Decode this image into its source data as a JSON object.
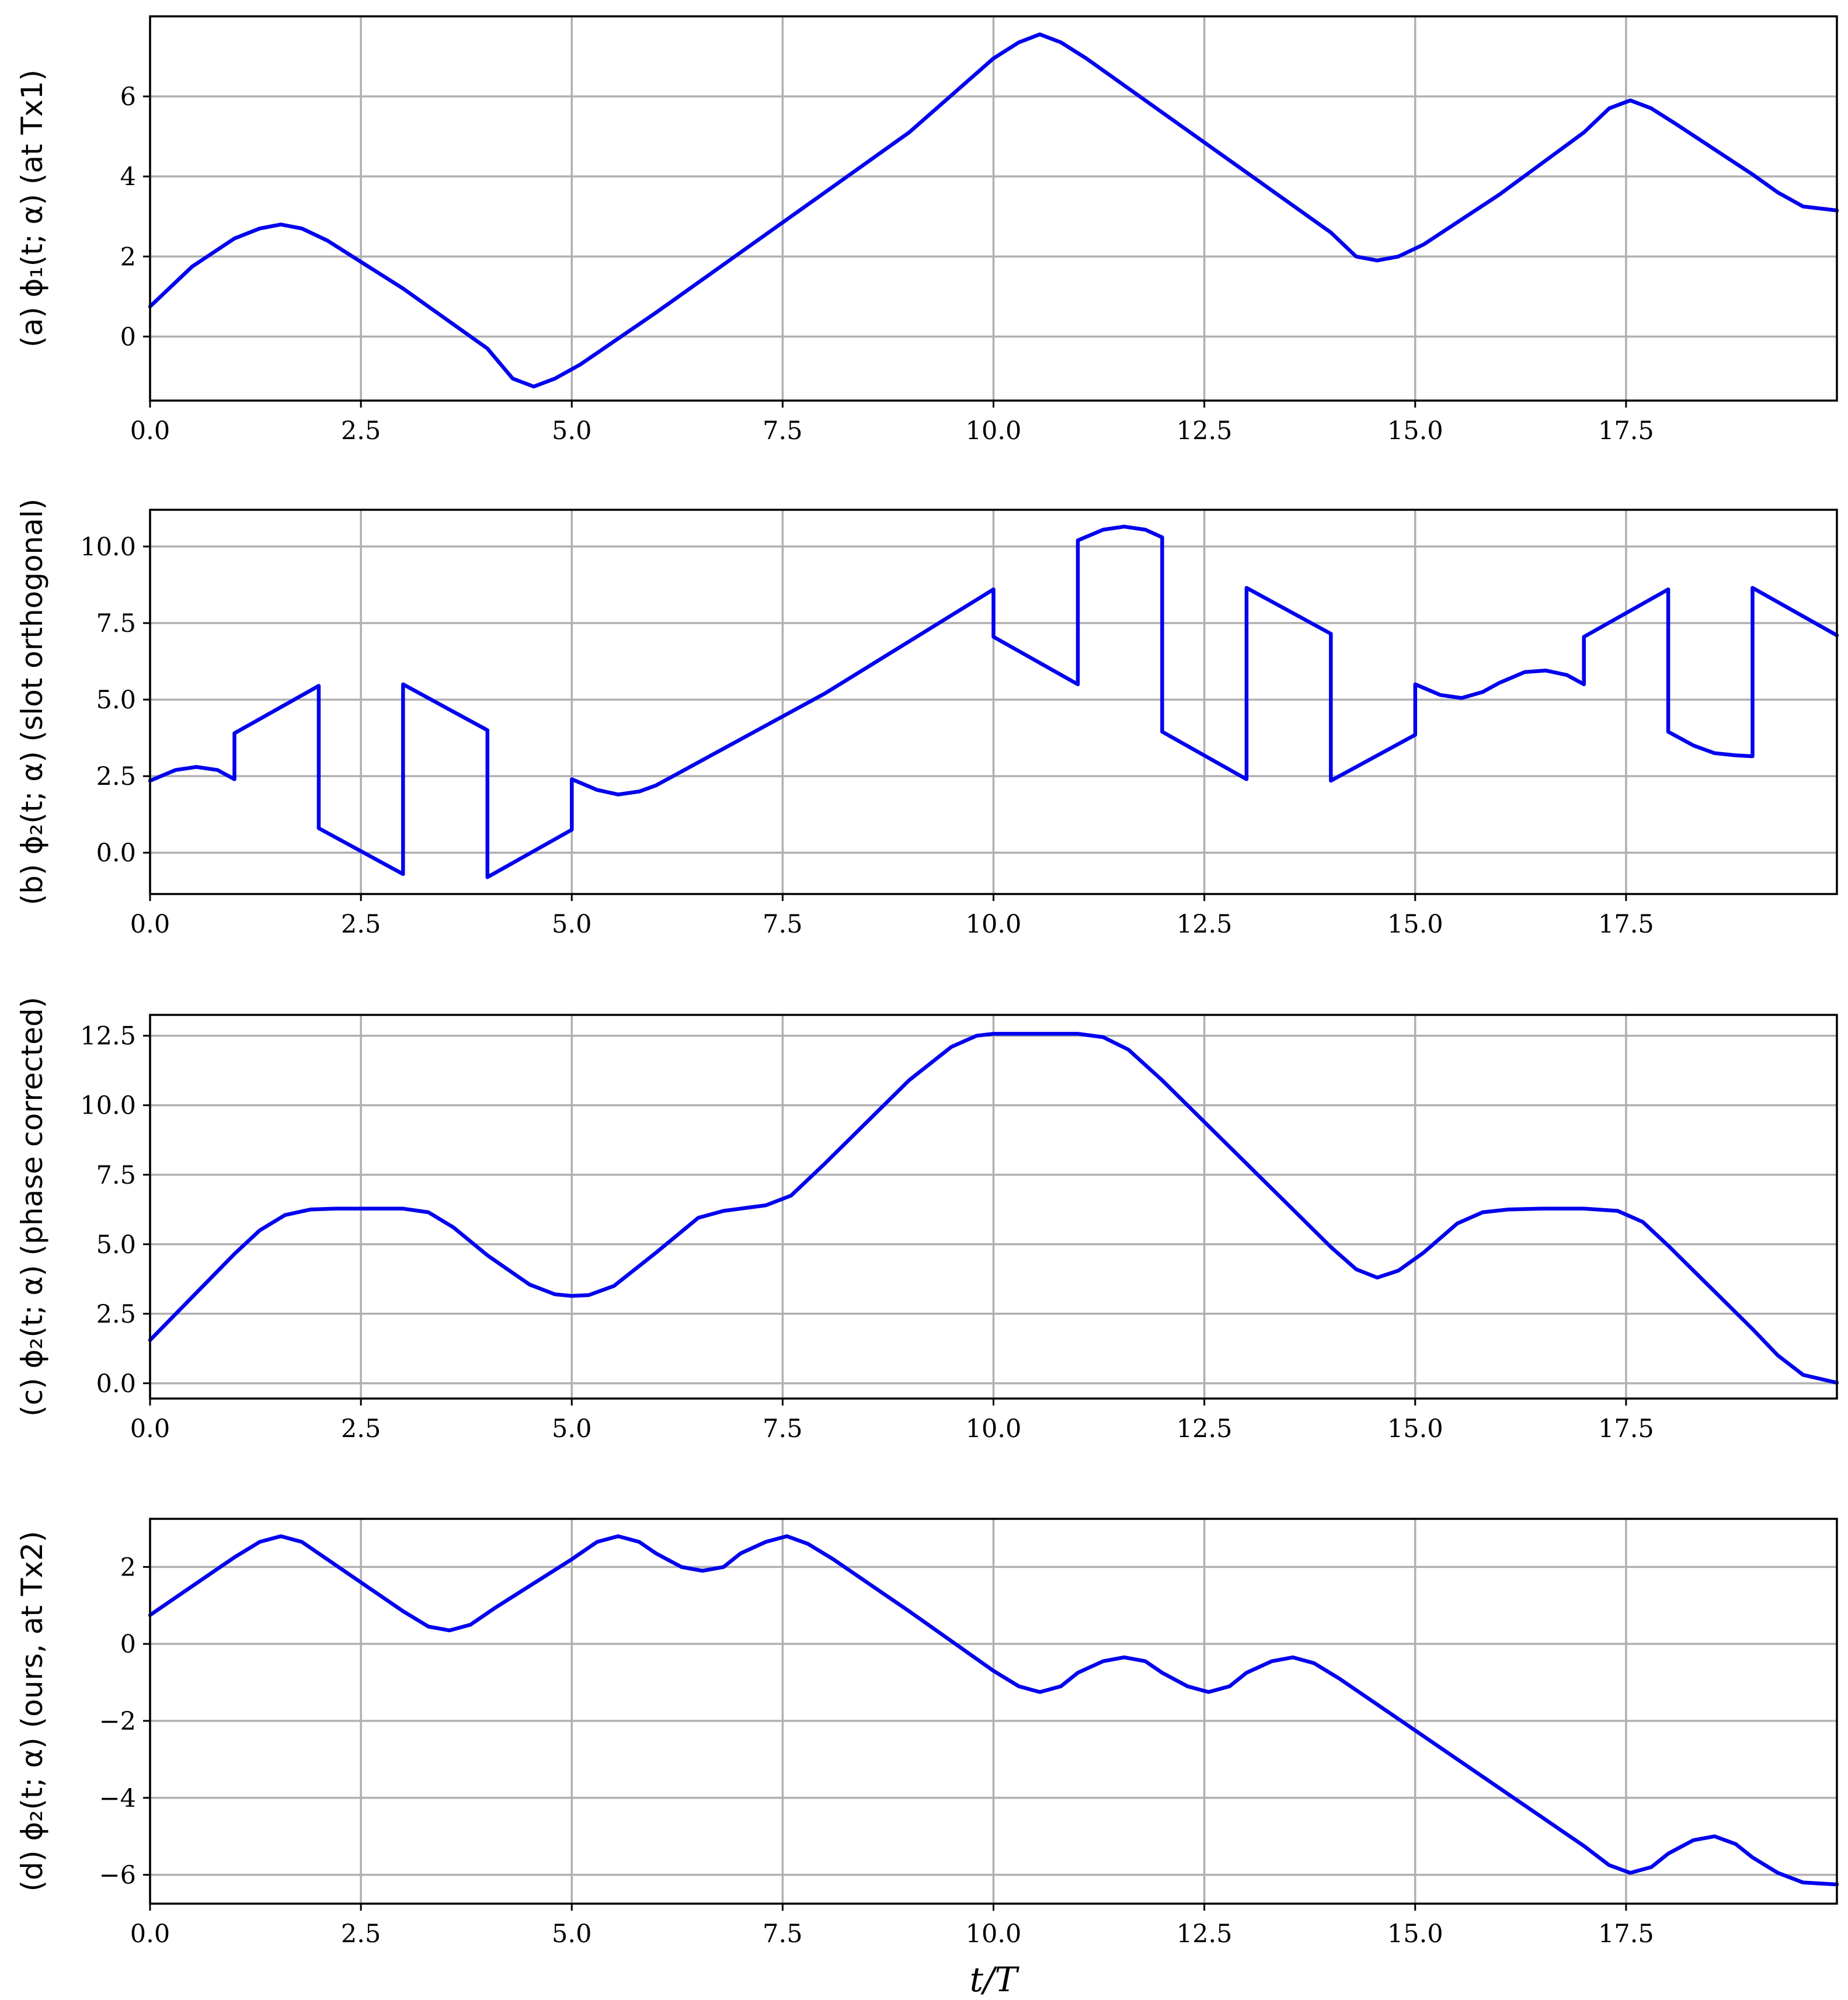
{
  "chart_data": [
    {
      "type": "line",
      "panel": "a",
      "ylabel": "(a) ϕ₁(t; α) (at Tx1)",
      "xlabel": "",
      "xlim": [
        0,
        20
      ],
      "ylim": [
        -1.6,
        8.0
      ],
      "xticks": [
        0,
        2.5,
        5,
        7.5,
        10,
        12.5,
        15,
        17.5
      ],
      "xtick_labels": [
        "0.0",
        "2.5",
        "5.0",
        "7.5",
        "10.0",
        "12.5",
        "15.0",
        "17.5"
      ],
      "yticks": [
        0,
        2,
        4,
        6
      ],
      "ytick_labels": [
        "0",
        "2",
        "4",
        "6"
      ],
      "grid": true,
      "series": [
        {
          "color": "#0000ee",
          "x": [
            0,
            0.5,
            1.0,
            1.3,
            1.55,
            1.8,
            2.1,
            3.0,
            4.0,
            4.3,
            4.55,
            4.8,
            5.1,
            6.0,
            7.0,
            8.0,
            9.0,
            10.0,
            10.3,
            10.55,
            10.8,
            11.1,
            12.0,
            13.0,
            14.0,
            14.3,
            14.55,
            14.8,
            15.1,
            16.0,
            17.0,
            17.3,
            17.55,
            17.8,
            18.1,
            19.0,
            19.3,
            19.6,
            20.0
          ],
          "y": [
            0.75,
            1.75,
            2.45,
            2.7,
            2.8,
            2.7,
            2.4,
            1.2,
            -0.3,
            -1.05,
            -1.25,
            -1.05,
            -0.7,
            0.6,
            2.1,
            3.6,
            5.1,
            6.95,
            7.35,
            7.55,
            7.35,
            6.95,
            5.6,
            4.1,
            2.6,
            2.0,
            1.9,
            2.0,
            2.3,
            3.55,
            5.1,
            5.7,
            5.9,
            5.7,
            5.3,
            4.05,
            3.6,
            3.25,
            3.15
          ]
        }
      ]
    },
    {
      "type": "line",
      "panel": "b",
      "ylabel": "(b) ϕ₂(t; α) (slot orthogonal)",
      "xlabel": "",
      "xlim": [
        0,
        20
      ],
      "ylim": [
        -1.35,
        11.2
      ],
      "xticks": [
        0,
        2.5,
        5,
        7.5,
        10,
        12.5,
        15,
        17.5
      ],
      "xtick_labels": [
        "0.0",
        "2.5",
        "5.0",
        "7.5",
        "10.0",
        "12.5",
        "15.0",
        "17.5"
      ],
      "yticks": [
        0,
        2.5,
        5,
        7.5,
        10
      ],
      "ytick_labels": [
        "0.0",
        "2.5",
        "5.0",
        "7.5",
        "10.0"
      ],
      "grid": true,
      "series": [
        {
          "color": "#0000ee",
          "x": [
            0,
            0.3,
            0.55,
            0.8,
            1.0,
            1.0,
            2.0,
            2.0,
            3.0,
            3.0,
            4.0,
            4.0,
            5.0,
            5.0,
            5.3,
            5.55,
            5.8,
            6.0,
            7.0,
            8.0,
            9.0,
            10.0,
            10.0,
            11.0,
            11.0,
            11.3,
            11.55,
            11.8,
            12.0,
            12.0,
            13.0,
            13.0,
            14.0,
            14.0,
            15.0,
            15.0,
            15.3,
            15.55,
            15.8,
            16.0,
            16.3,
            16.55,
            16.8,
            17.0,
            17.0,
            18.0,
            18.0,
            18.3,
            18.55,
            18.8,
            19.0,
            19.0,
            20.0
          ],
          "y": [
            2.35,
            2.7,
            2.8,
            2.7,
            2.4,
            3.9,
            5.45,
            0.8,
            -0.7,
            5.5,
            4.0,
            -0.8,
            0.75,
            2.4,
            2.05,
            1.9,
            2.0,
            2.2,
            3.7,
            5.2,
            6.9,
            8.6,
            7.05,
            5.5,
            10.2,
            10.55,
            10.65,
            10.55,
            10.3,
            3.95,
            2.4,
            8.65,
            7.15,
            2.35,
            3.85,
            5.5,
            5.15,
            5.05,
            5.25,
            5.55,
            5.9,
            5.95,
            5.8,
            5.5,
            7.05,
            8.6,
            3.95,
            3.5,
            3.25,
            3.18,
            3.15,
            8.65,
            7.1
          ]
        }
      ]
    },
    {
      "type": "line",
      "panel": "c",
      "ylabel": "(c) ϕ₂(t; α) (phase corrected)",
      "xlabel": "",
      "xlim": [
        0,
        20
      ],
      "ylim": [
        -0.55,
        13.25
      ],
      "xticks": [
        0,
        2.5,
        5,
        7.5,
        10,
        12.5,
        15,
        17.5
      ],
      "xtick_labels": [
        "0.0",
        "2.5",
        "5.0",
        "7.5",
        "10.0",
        "12.5",
        "15.0",
        "17.5"
      ],
      "yticks": [
        0,
        2.5,
        5,
        7.5,
        10,
        12.5
      ],
      "ytick_labels": [
        "0.0",
        "2.5",
        "5.0",
        "7.5",
        "10.0",
        "12.5"
      ],
      "grid": true,
      "series": [
        {
          "color": "#0000ee",
          "x": [
            0,
            0.5,
            1.0,
            1.3,
            1.6,
            1.9,
            2.2,
            2.5,
            3.0,
            3.3,
            3.6,
            4.0,
            4.5,
            4.8,
            5.0,
            5.2,
            5.5,
            6.0,
            6.5,
            6.8,
            7.0,
            7.3,
            7.6,
            8.0,
            8.5,
            9.0,
            9.5,
            9.8,
            10.0,
            10.5,
            11.0,
            11.3,
            11.6,
            12.0,
            12.5,
            13.0,
            13.5,
            14.0,
            14.3,
            14.55,
            14.8,
            15.1,
            15.5,
            15.8,
            16.1,
            16.5,
            17.0,
            17.4,
            17.7,
            18.0,
            18.5,
            19.0,
            19.3,
            19.6,
            20.0
          ],
          "y": [
            1.55,
            3.1,
            4.65,
            5.5,
            6.05,
            6.25,
            6.28,
            6.28,
            6.28,
            6.15,
            5.6,
            4.6,
            3.55,
            3.2,
            3.14,
            3.17,
            3.5,
            4.7,
            5.95,
            6.2,
            6.28,
            6.4,
            6.75,
            7.9,
            9.4,
            10.9,
            12.1,
            12.5,
            12.57,
            12.57,
            12.57,
            12.45,
            12.0,
            10.9,
            9.4,
            7.9,
            6.4,
            4.9,
            4.1,
            3.8,
            4.05,
            4.7,
            5.75,
            6.15,
            6.25,
            6.28,
            6.28,
            6.2,
            5.8,
            4.95,
            3.45,
            1.95,
            1.0,
            0.3,
            0.02
          ]
        }
      ]
    },
    {
      "type": "line",
      "panel": "d",
      "ylabel": "(d) ϕ₂(t; α) (ours, at Tx2)",
      "xlabel": "t/T",
      "xlim": [
        0,
        20
      ],
      "ylim": [
        -6.75,
        3.25
      ],
      "xticks": [
        0,
        2.5,
        5,
        7.5,
        10,
        12.5,
        15,
        17.5
      ],
      "xtick_labels": [
        "0.0",
        "2.5",
        "5.0",
        "7.5",
        "10.0",
        "12.5",
        "15.0",
        "17.5"
      ],
      "yticks": [
        -6,
        -4,
        -2,
        0,
        2
      ],
      "ytick_labels": [
        "−6",
        "−4",
        "−2",
        "0",
        "2"
      ],
      "grid": true,
      "series": [
        {
          "color": "#0000ee",
          "x": [
            0,
            0.5,
            1.0,
            1.3,
            1.55,
            1.8,
            2.1,
            3.0,
            3.3,
            3.55,
            3.8,
            4.1,
            5.0,
            5.3,
            5.55,
            5.8,
            6.0,
            6.3,
            6.55,
            6.8,
            7.0,
            7.3,
            7.55,
            7.8,
            8.1,
            9.0,
            10.0,
            10.3,
            10.55,
            10.8,
            11.0,
            11.3,
            11.55,
            11.8,
            12.0,
            12.3,
            12.55,
            12.8,
            13.0,
            13.3,
            13.55,
            13.8,
            14.1,
            15.0,
            16.0,
            17.0,
            17.3,
            17.55,
            17.8,
            18.0,
            18.3,
            18.55,
            18.8,
            19.0,
            19.3,
            19.6,
            20.0
          ],
          "y": [
            0.75,
            1.5,
            2.25,
            2.65,
            2.8,
            2.65,
            2.2,
            0.85,
            0.45,
            0.35,
            0.5,
            0.95,
            2.2,
            2.65,
            2.8,
            2.65,
            2.35,
            2.0,
            1.9,
            2.0,
            2.35,
            2.65,
            2.8,
            2.6,
            2.2,
            0.85,
            -0.7,
            -1.1,
            -1.25,
            -1.1,
            -0.75,
            -0.45,
            -0.35,
            -0.45,
            -0.75,
            -1.1,
            -1.25,
            -1.1,
            -0.75,
            -0.45,
            -0.35,
            -0.5,
            -0.9,
            -2.25,
            -3.75,
            -5.25,
            -5.75,
            -5.95,
            -5.8,
            -5.45,
            -5.1,
            -5.0,
            -5.2,
            -5.55,
            -5.95,
            -6.2,
            -6.25
          ]
        }
      ]
    }
  ]
}
